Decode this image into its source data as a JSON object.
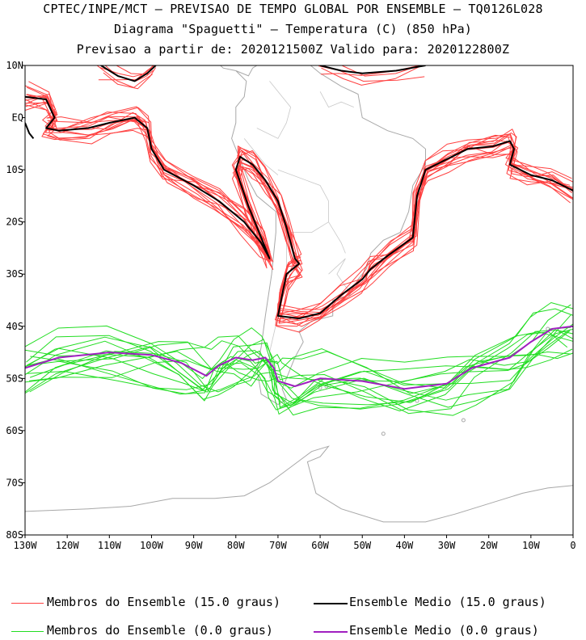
{
  "header": {
    "line1": "CPTEC/INPE/MCT – PREVISAO DE TEMPO GLOBAL POR ENSEMBLE – TQ0126L028",
    "line2": "Diagrama \"Spaguetti\" – Temperatura (C) (850 hPa)",
    "line3": "Previsao a partir de: 2020121500Z  Valido para: 2020122800Z"
  },
  "colors": {
    "members_15": "#ff4040",
    "mean_15": "#000000",
    "members_0": "#22dd22",
    "mean_0": "#a020c0",
    "coast": "#a8a8a8"
  },
  "chart_data": {
    "type": "line",
    "title": "Diagrama \"Spaguetti\" - Temperatura (C) (850 hPa)",
    "xlim": [
      -130,
      0
    ],
    "ylim": [
      -80,
      10
    ],
    "x_ticks": [
      -130,
      -120,
      -110,
      -100,
      -90,
      -80,
      -70,
      -60,
      -50,
      -40,
      -30,
      -20,
      -10,
      0
    ],
    "x_tick_labels": [
      "130W",
      "120W",
      "110W",
      "100W",
      "90W",
      "80W",
      "70W",
      "60W",
      "50W",
      "40W",
      "30W",
      "20W",
      "10W",
      "0"
    ],
    "y_ticks": [
      10,
      0,
      -10,
      -20,
      -30,
      -40,
      -50,
      -60,
      -70,
      -80
    ],
    "y_tick_labels": [
      "10N",
      "EQ",
      "10S",
      "20S",
      "30S",
      "40S",
      "50S",
      "60S",
      "70S",
      "80S"
    ],
    "legend": [
      "Membros do Ensemble (15.0 graus)",
      "Ensemble Medio (15.0 graus)",
      "Membros do Ensemble (0.0 graus)",
      "Ensemble Medio (0.0 graus)"
    ],
    "series": [
      {
        "name": "Ensemble Medio (15.0 graus)",
        "segments": [
          [
            [
              -130,
              4
            ],
            [
              -125,
              3.5
            ],
            [
              -123,
              0
            ],
            [
              -125,
              -2
            ],
            [
              -122,
              -2.5
            ],
            [
              -115,
              -2
            ],
            [
              -110,
              -1
            ],
            [
              -104,
              0
            ],
            [
              -101,
              -2
            ],
            [
              -100,
              -6
            ],
            [
              -97,
              -10
            ],
            [
              -90,
              -13
            ],
            [
              -84,
              -16
            ],
            [
              -78,
              -20
            ],
            [
              -74,
              -24
            ],
            [
              -72,
              -27
            ],
            [
              -74,
              -23
            ],
            [
              -77,
              -17
            ],
            [
              -80,
              -10
            ],
            [
              -79,
              -7.5
            ],
            [
              -76,
              -9
            ],
            [
              -73,
              -12
            ],
            [
              -70,
              -16
            ],
            [
              -68,
              -21
            ],
            [
              -66,
              -27
            ],
            [
              -65,
              -28
            ],
            [
              -68,
              -30
            ],
            [
              -69,
              -34
            ],
            [
              -70,
              -38
            ],
            [
              -65,
              -38.5
            ],
            [
              -60,
              -37.5
            ],
            [
              -55,
              -34
            ],
            [
              -50,
              -31
            ],
            [
              -48,
              -29
            ],
            [
              -44,
              -26.5
            ],
            [
              -38,
              -23
            ],
            [
              -37,
              -15
            ],
            [
              -35,
              -10
            ],
            [
              -30,
              -8
            ],
            [
              -25,
              -6
            ],
            [
              -19,
              -5.5
            ],
            [
              -15,
              -4.5
            ],
            [
              -14,
              -6
            ],
            [
              -15,
              -9
            ],
            [
              -10,
              -11
            ],
            [
              -5,
              -12
            ],
            [
              0,
              -14
            ]
          ],
          [
            [
              -112,
              10
            ],
            [
              -108,
              8
            ],
            [
              -104,
              7
            ],
            [
              -101,
              8.5
            ],
            [
              -99,
              10
            ]
          ],
          [
            [
              -60,
              10
            ],
            [
              -55,
              9
            ],
            [
              -50,
              8.5
            ],
            [
              -42,
              9
            ],
            [
              -35,
              10
            ]
          ],
          [
            [
              -130,
              -1
            ],
            [
              -129,
              -3
            ],
            [
              -128,
              -4
            ]
          ]
        ]
      },
      {
        "name": "Ensemble Medio (0.0 graus)",
        "segments": [
          [
            [
              -130,
              -48
            ],
            [
              -122,
              -46
            ],
            [
              -110,
              -45
            ],
            [
              -100,
              -45.5
            ],
            [
              -93,
              -47
            ],
            [
              -87,
              -49.5
            ],
            [
              -84,
              -47.5
            ],
            [
              -80,
              -46
            ],
            [
              -76,
              -46.5
            ],
            [
              -73,
              -46
            ],
            [
              -71,
              -48
            ],
            [
              -70,
              -50.5
            ],
            [
              -66,
              -51.5
            ],
            [
              -60,
              -50
            ],
            [
              -50,
              -50.5
            ],
            [
              -40,
              -52
            ],
            [
              -30,
              -51
            ],
            [
              -24,
              -48
            ],
            [
              -15,
              -46
            ],
            [
              -10,
              -43
            ],
            [
              -5,
              -40.5
            ],
            [
              0,
              -40
            ]
          ]
        ]
      }
    ]
  },
  "legend_labels": {
    "members_15": "Membros do Ensemble (15.0 graus)",
    "mean_15": "Ensemble Medio (15.0 graus)",
    "members_0": "Membros do Ensemble (0.0 graus)",
    "mean_0": "Ensemble Medio (0.0 graus)"
  }
}
